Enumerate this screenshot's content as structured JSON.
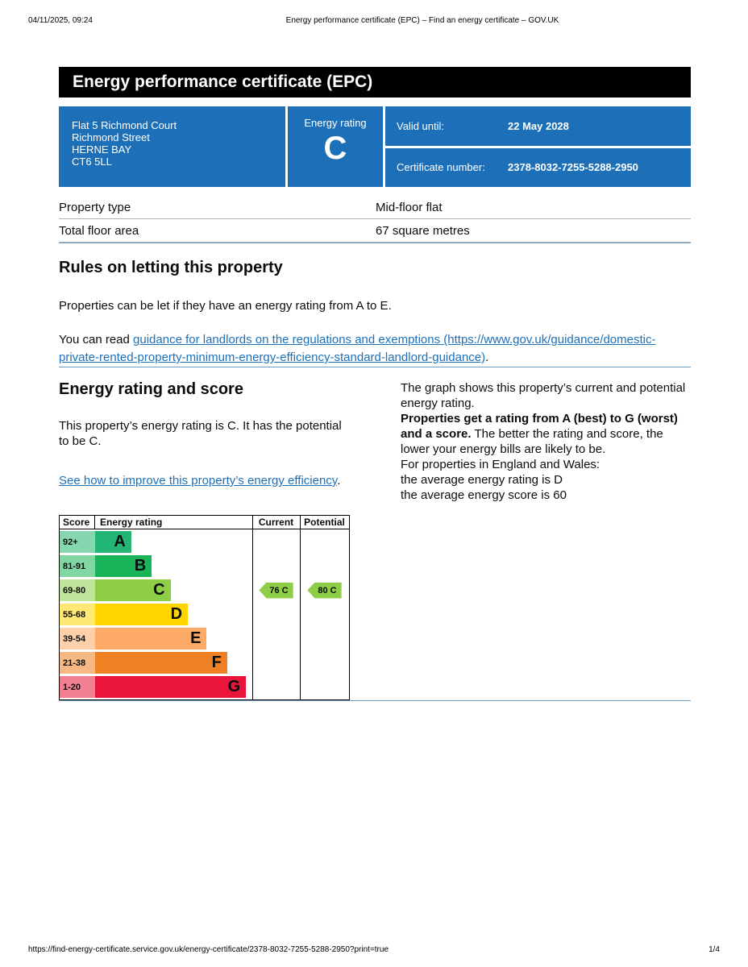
{
  "print_header": {
    "datetime": "04/11/2025, 09:24",
    "title": "Energy performance certificate (EPC) – Find an energy certificate – GOV.UK"
  },
  "print_footer": {
    "url": "https://find-energy-certificate.service.gov.uk/energy-certificate/2378-8032-7255-5288-2950?print=true",
    "page": "1/4"
  },
  "banner": {
    "title": "Energy performance certificate (EPC)"
  },
  "summary": {
    "address_lines": [
      "Flat 5 Richmond Court",
      "Richmond Street",
      "HERNE BAY",
      "CT6 5LL"
    ],
    "energy_rating_label": "Energy rating",
    "energy_rating": "C",
    "valid_until_label": "Valid until:",
    "valid_until": "22 May 2028",
    "certificate_number_label": "Certificate number:",
    "certificate_number": "2378-8032-7255-5288-2950"
  },
  "facts": {
    "rows": [
      {
        "label": "Property type",
        "value": "Mid-floor flat"
      },
      {
        "label": "Total floor area",
        "value": "67 square metres"
      }
    ]
  },
  "rules": {
    "heading": "Rules on letting this property",
    "para1": "Properties can be let if they have an energy rating from A to E.",
    "para2_prefix": "You can read ",
    "para2_link": "guidance for landlords on the regulations and exemptions (https://www.gov.uk/guidance/domestic-private-rented-property-minimum-energy-efficiency-standard-landlord-guidance)",
    "para2_suffix": "."
  },
  "rating_section": {
    "heading": "Energy rating and score",
    "para1": "This property’s energy rating is C. It has the potential to be C.",
    "link": "See how to improve this property’s energy efficiency",
    "link_suffix": ".",
    "right_para1": "The graph shows this property’s current and potential energy rating.",
    "right_para2_bold": "Properties get a rating from A (best) to G (worst) and a score.",
    "right_para2_rest": " The better the rating and score, the lower your energy bills are likely to be.",
    "right_para3": "For properties in England and Wales:",
    "right_para4_line1": "the average energy rating is D",
    "right_para4_line2": "the average energy score is 60"
  },
  "colors": {
    "govuk_blue": "#1d70b8",
    "banner_black": "#000000",
    "link_blue": "#1d70b8",
    "rule_blue": "#6f9ec4"
  },
  "chart_data": {
    "type": "bar",
    "title": "Energy efficiency rating chart",
    "columns": [
      "Score",
      "Energy rating",
      "Current",
      "Potential"
    ],
    "bands": [
      {
        "letter": "A",
        "range": "92+",
        "color": "#22b573",
        "width_pct": 23
      },
      {
        "letter": "B",
        "range": "81-91",
        "color": "#19b459",
        "width_pct": 36
      },
      {
        "letter": "C",
        "range": "69-80",
        "color": "#8dce46",
        "width_pct": 48
      },
      {
        "letter": "D",
        "range": "55-68",
        "color": "#ffd500",
        "width_pct": 59
      },
      {
        "letter": "E",
        "range": "39-54",
        "color": "#fcaa65",
        "width_pct": 71
      },
      {
        "letter": "F",
        "range": "21-38",
        "color": "#ef8023",
        "width_pct": 84
      },
      {
        "letter": "G",
        "range": "1-20",
        "color": "#e9153b",
        "width_pct": 96
      }
    ],
    "current": {
      "score": 76,
      "band": "C",
      "label": "76 C"
    },
    "potential": {
      "score": 80,
      "band": "C",
      "label": "80 C"
    },
    "arrow_color": "#8dce46"
  }
}
